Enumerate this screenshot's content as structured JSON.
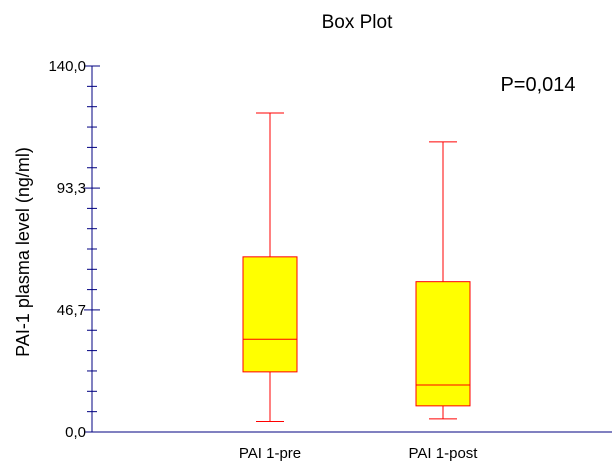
{
  "chart_data": {
    "type": "box",
    "title": "Box Plot",
    "ylabel": "PAI-1 plasma level (ng/ml)",
    "xlabel": "",
    "ylim": [
      0,
      140
    ],
    "yticks": [
      "0,0",
      "46,7",
      "93,3",
      "140,0"
    ],
    "yticks_values": [
      0,
      46.7,
      93.3,
      140
    ],
    "annotation": "P=0,014",
    "categories": [
      "PAI 1-pre",
      "PAI 1-post"
    ],
    "boxes": [
      {
        "label": "PAI 1-pre",
        "whisker_low": 4,
        "q1": 23,
        "median": 35.5,
        "q3": 67,
        "whisker_high": 122
      },
      {
        "label": "PAI 1-post",
        "whisker_low": 5,
        "q1": 10,
        "median": 18,
        "q3": 57.5,
        "whisker_high": 111
      }
    ],
    "colors": {
      "box_fill": "#ffff00",
      "box_stroke": "#ff0000",
      "axis": "#000080"
    },
    "grid": false,
    "legend": "none"
  }
}
